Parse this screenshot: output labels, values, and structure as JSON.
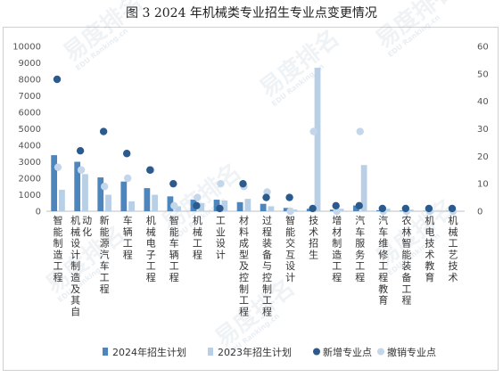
{
  "title": "图 3  2024 年机械类专业招生专业点变更情况",
  "watermark": {
    "text": "易度排名",
    "sub": "EDU Ranking.cn"
  },
  "colors": {
    "plan2024": "#4d86bd",
    "plan2023": "#b8cfe6",
    "new_points": "#2b5a8e",
    "cancel_points": "#c3d6ea"
  },
  "chart_data": {
    "type": "bar",
    "title": "图 3  2024 年机械类专业招生专业点变更情况",
    "xlabel": "",
    "ylabel": "",
    "ylim": [
      0,
      10000
    ],
    "y_ticks": [
      0,
      1000,
      2000,
      3000,
      4000,
      5000,
      6000,
      7000,
      8000,
      9000,
      10000
    ],
    "y2lim": [
      0,
      60
    ],
    "y2_ticks": [
      0,
      10,
      20,
      30,
      40,
      50,
      60
    ],
    "legend_position": "bottom",
    "grid": false,
    "categories": [
      "智能制造工程",
      "机械设计制造及其自动化",
      "新能源汽车工程",
      "车辆工程",
      "机械电子工程",
      "智能车辆工程",
      "机械工程",
      "工业设计",
      "材料成型及控制工程",
      "过程装备与控制工程",
      "智能交互设计",
      "技术招生",
      "增材制造工程",
      "汽车服务工程",
      "汽车维修工程教育",
      "农林智能装备工程",
      "机电技术教育",
      "机械工艺技术"
    ],
    "series": [
      {
        "name": "2024年招生计划",
        "type": "bar",
        "axis": "left",
        "values": [
          3400,
          3000,
          2050,
          1800,
          1400,
          900,
          700,
          700,
          550,
          450,
          200,
          150,
          100,
          350,
          60,
          40,
          20,
          20
        ]
      },
      {
        "name": "2023年招生计划",
        "type": "bar",
        "axis": "left",
        "values": [
          1300,
          2250,
          1000,
          600,
          1000,
          300,
          500,
          650,
          750,
          300,
          100,
          8700,
          150,
          2800,
          150,
          100,
          30,
          30
        ]
      },
      {
        "name": "新增专业点",
        "type": "scatter",
        "axis": "right",
        "values": [
          48,
          22,
          29,
          21,
          15,
          10,
          2,
          1,
          10,
          5,
          5,
          1,
          2,
          2,
          1,
          1,
          1,
          1
        ]
      },
      {
        "name": "撤销专业点",
        "type": "scatter",
        "axis": "right",
        "values": [
          16,
          15,
          9,
          12,
          15,
          2,
          5,
          10,
          9,
          7,
          0,
          29,
          0,
          29,
          0,
          0,
          0,
          0
        ]
      }
    ]
  }
}
